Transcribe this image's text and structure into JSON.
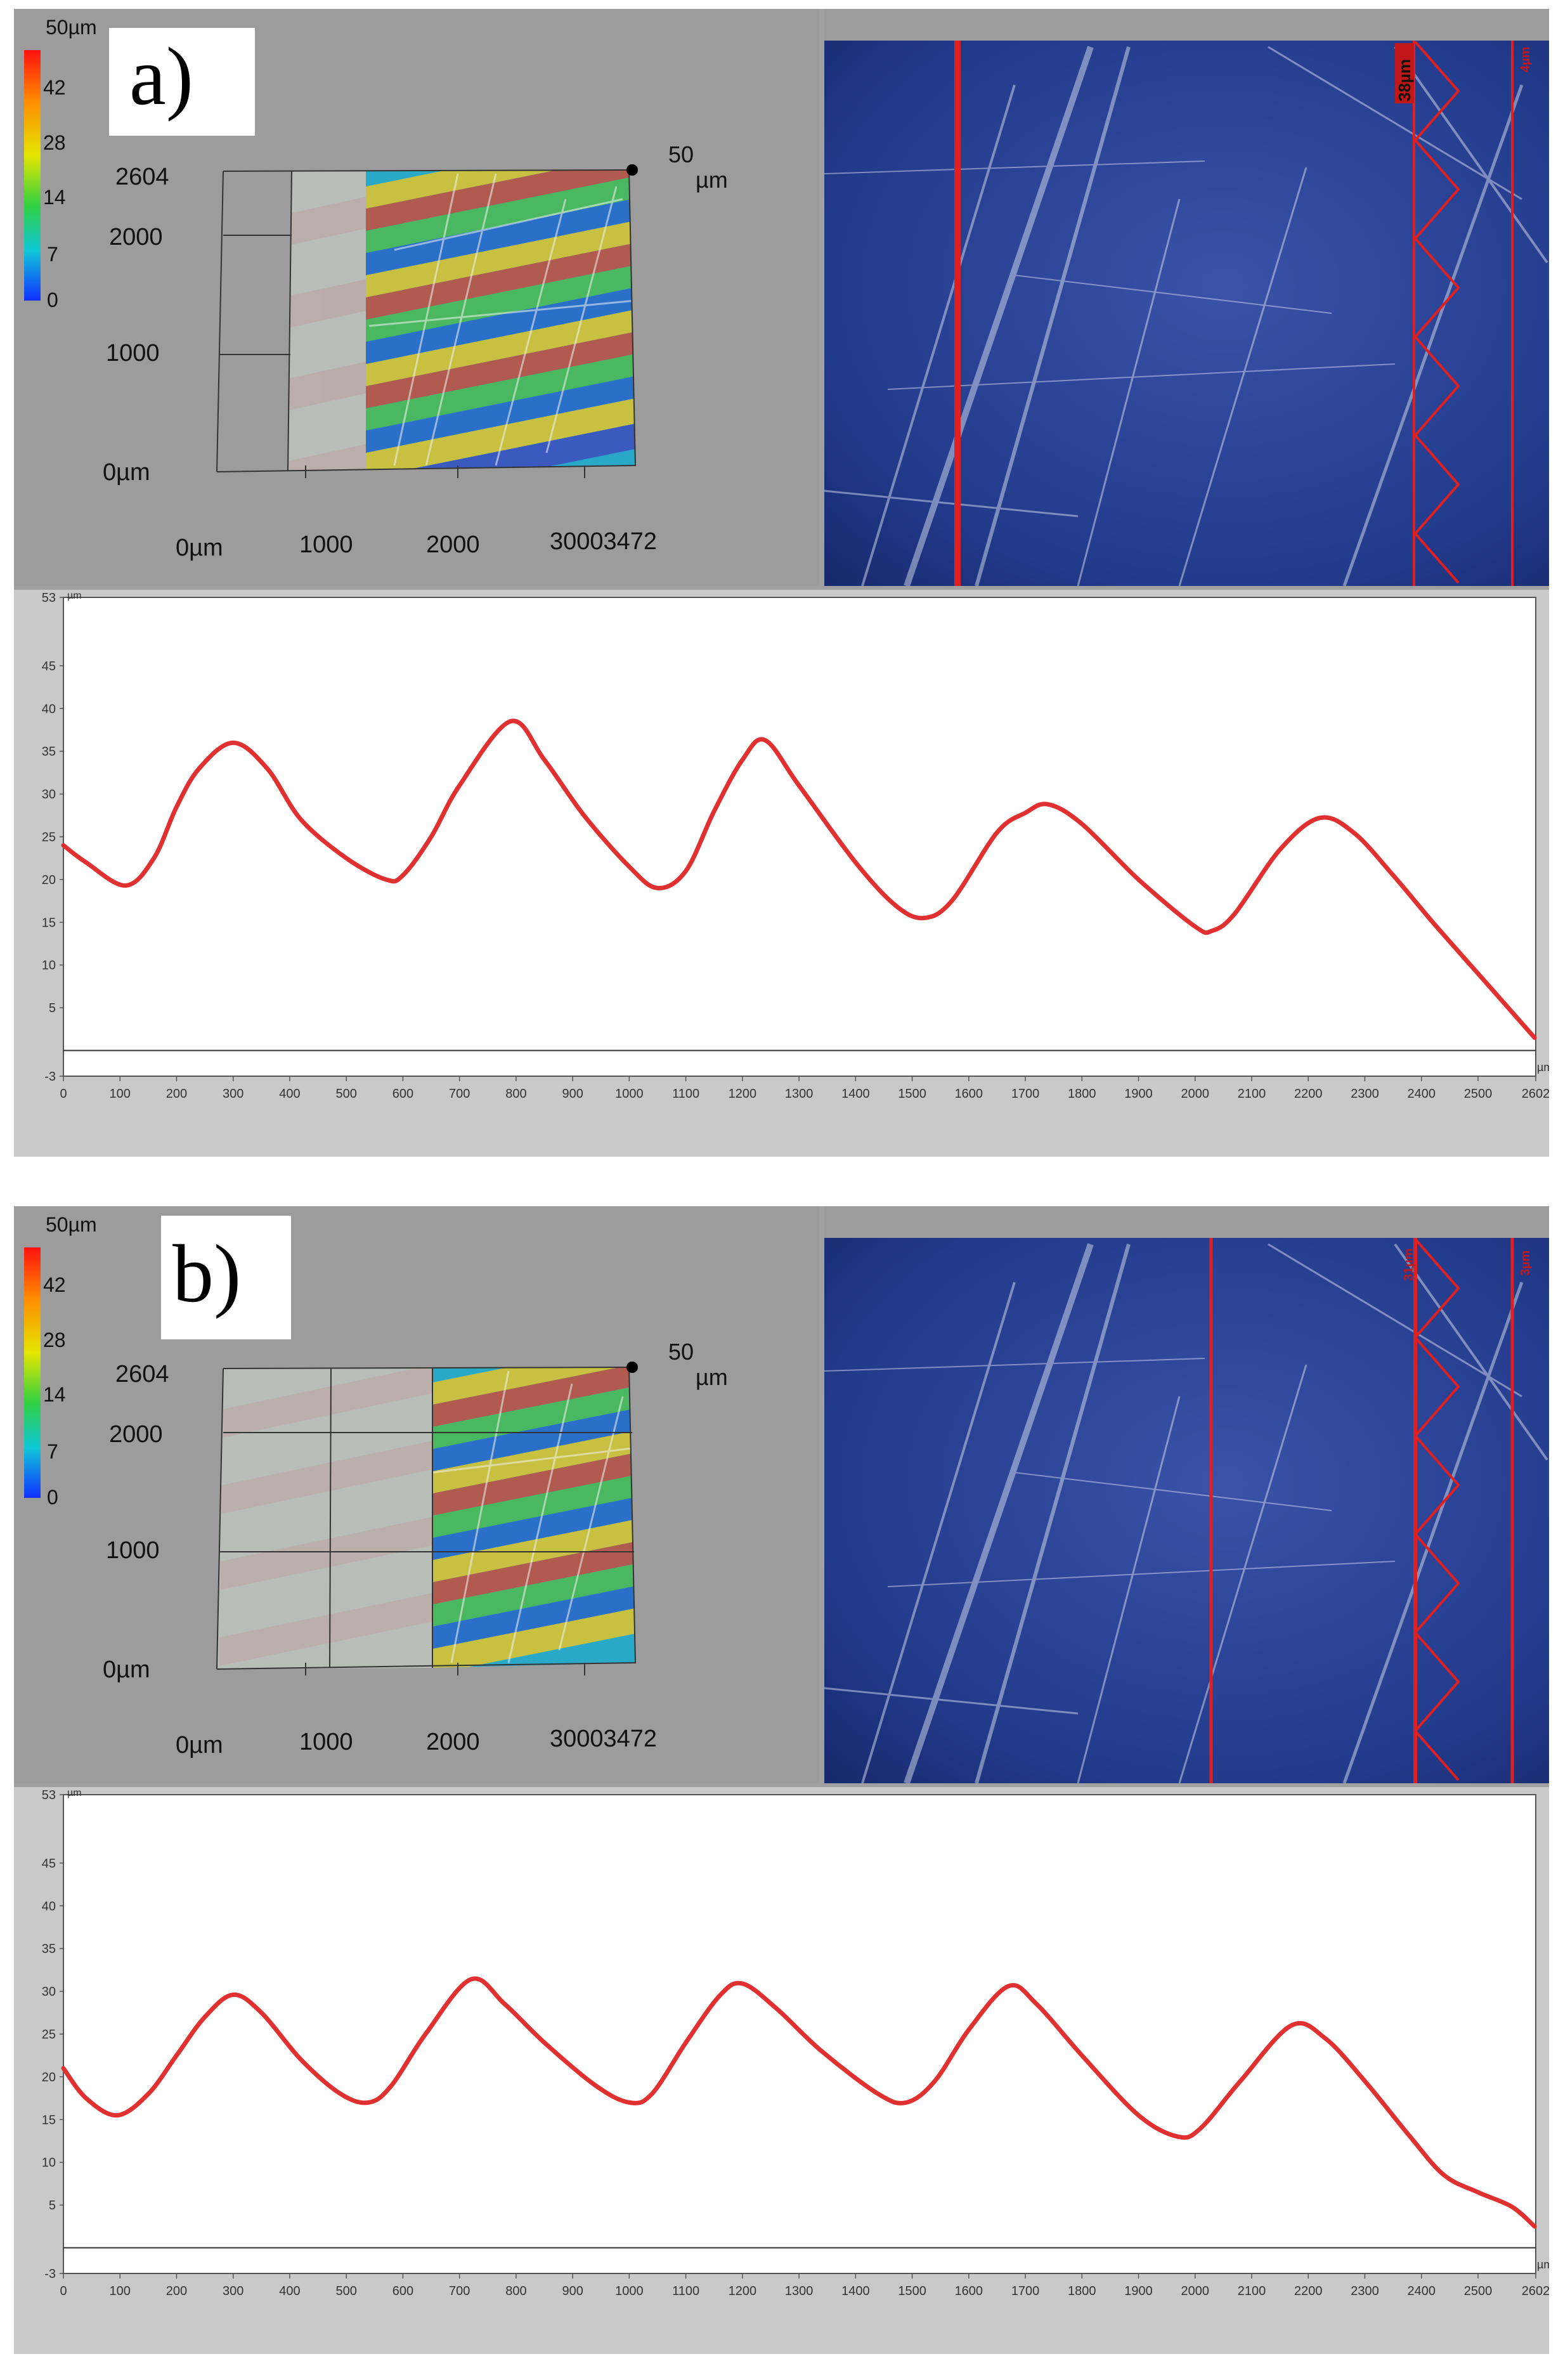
{
  "panels": [
    {
      "id": "a",
      "label": "a)",
      "colorbar": {
        "max_label": "50µm",
        "ticks": [
          "42",
          "28",
          "14",
          "7",
          "0"
        ]
      },
      "view3d": {
        "y_ticks": [
          "2604",
          "2000",
          "1000",
          "0µm"
        ],
        "x_ticks": [
          "0µm",
          "1000",
          "2000",
          "30003472"
        ],
        "z_label_value": "50",
        "z_label_unit": "µm"
      },
      "photo": {
        "tags": [
          "38µm",
          "4µm"
        ],
        "line_color": "#e02020",
        "zigzag_points": 11
      },
      "chart_data": {
        "type": "line",
        "x_unit": "µm",
        "y_unit": "µm",
        "xlim": [
          0,
          2602
        ],
        "ylim": [
          -3,
          53
        ],
        "y_ticks": [
          -3,
          5,
          10,
          15,
          20,
          25,
          30,
          35,
          40,
          45,
          53
        ],
        "x_ticks": [
          0,
          100,
          200,
          300,
          400,
          500,
          600,
          700,
          800,
          900,
          1000,
          1100,
          1200,
          1300,
          1400,
          1500,
          1600,
          1700,
          1800,
          1900,
          2000,
          2100,
          2200,
          2300,
          2400,
          2500,
          2602
        ],
        "color": "#e03030",
        "points": [
          [
            0,
            24
          ],
          [
            40,
            22
          ],
          [
            110,
            19.3
          ],
          [
            160,
            22.5
          ],
          [
            200,
            28.5
          ],
          [
            240,
            33
          ],
          [
            300,
            36
          ],
          [
            360,
            33
          ],
          [
            420,
            27
          ],
          [
            500,
            22.5
          ],
          [
            570,
            20
          ],
          [
            600,
            20.5
          ],
          [
            650,
            25
          ],
          [
            700,
            31
          ],
          [
            790,
            38.5
          ],
          [
            850,
            34
          ],
          [
            920,
            27.5
          ],
          [
            1000,
            21.5
          ],
          [
            1050,
            19
          ],
          [
            1100,
            21
          ],
          [
            1150,
            28
          ],
          [
            1200,
            34
          ],
          [
            1240,
            36.3
          ],
          [
            1300,
            31
          ],
          [
            1400,
            22
          ],
          [
            1470,
            17
          ],
          [
            1520,
            15.5
          ],
          [
            1570,
            17.5
          ],
          [
            1650,
            25.5
          ],
          [
            1700,
            27.8
          ],
          [
            1740,
            28.8
          ],
          [
            1800,
            26.5
          ],
          [
            1900,
            20
          ],
          [
            2000,
            14.5
          ],
          [
            2030,
            14
          ],
          [
            2070,
            16
          ],
          [
            2150,
            23.5
          ],
          [
            2220,
            27.2
          ],
          [
            2280,
            25.5
          ],
          [
            2350,
            20.5
          ],
          [
            2420,
            15
          ],
          [
            2500,
            9
          ],
          [
            2600,
            1.5
          ]
        ]
      }
    },
    {
      "id": "b",
      "label": "b)",
      "colorbar": {
        "max_label": "50µm",
        "ticks": [
          "42",
          "28",
          "14",
          "7",
          "0"
        ]
      },
      "view3d": {
        "y_ticks": [
          "2604",
          "2000",
          "1000",
          "0µm"
        ],
        "x_ticks": [
          "0µm",
          "1000",
          "2000",
          "30003472"
        ],
        "z_label_value": "50",
        "z_label_unit": "µm"
      },
      "photo": {
        "tags": [
          "31µm",
          "3µm"
        ],
        "line_color": "#e02020",
        "zigzag_points": 11
      },
      "chart_data": {
        "type": "line",
        "x_unit": "µm",
        "y_unit": "µm",
        "xlim": [
          0,
          2602
        ],
        "ylim": [
          -3,
          53
        ],
        "y_ticks": [
          -3,
          5,
          10,
          15,
          20,
          25,
          30,
          35,
          40,
          45,
          53
        ],
        "x_ticks": [
          0,
          100,
          200,
          300,
          400,
          500,
          600,
          700,
          800,
          900,
          1000,
          1100,
          1200,
          1300,
          1400,
          1500,
          1600,
          1700,
          1800,
          1900,
          2000,
          2100,
          2200,
          2300,
          2400,
          2500,
          2602
        ],
        "color": "#e03030",
        "points": [
          [
            0,
            21
          ],
          [
            40,
            17.5
          ],
          [
            95,
            15.5
          ],
          [
            150,
            18
          ],
          [
            200,
            22.5
          ],
          [
            250,
            27
          ],
          [
            300,
            29.6
          ],
          [
            350,
            27.5
          ],
          [
            420,
            22
          ],
          [
            490,
            18
          ],
          [
            540,
            17
          ],
          [
            580,
            19
          ],
          [
            640,
            25
          ],
          [
            720,
            31.4
          ],
          [
            780,
            28.5
          ],
          [
            850,
            24
          ],
          [
            940,
            19
          ],
          [
            1000,
            17
          ],
          [
            1040,
            18
          ],
          [
            1100,
            24
          ],
          [
            1160,
            29.5
          ],
          [
            1200,
            30.9
          ],
          [
            1260,
            28
          ],
          [
            1340,
            23
          ],
          [
            1440,
            18
          ],
          [
            1490,
            17
          ],
          [
            1540,
            19.5
          ],
          [
            1600,
            25.5
          ],
          [
            1670,
            30.6
          ],
          [
            1720,
            28.5
          ],
          [
            1800,
            22.5
          ],
          [
            1900,
            15.5
          ],
          [
            1970,
            13
          ],
          [
            2010,
            14
          ],
          [
            2080,
            19.5
          ],
          [
            2170,
            26
          ],
          [
            2230,
            24.5
          ],
          [
            2300,
            19.5
          ],
          [
            2380,
            13
          ],
          [
            2440,
            8.5
          ],
          [
            2500,
            6.5
          ],
          [
            2560,
            4.8
          ],
          [
            2600,
            2.5
          ]
        ]
      }
    }
  ]
}
